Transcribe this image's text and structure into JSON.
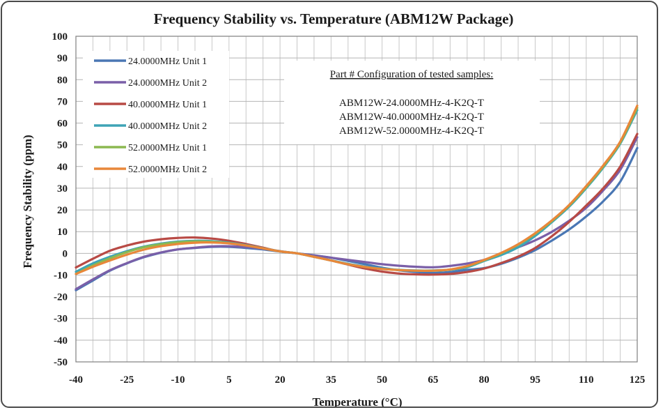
{
  "chart_data": {
    "type": "line",
    "title": "Frequency Stability  vs. Temperature (ABM12W Package)",
    "xlabel": "Temperature (°C)",
    "ylabel": "Frequency Stability  (ppm)",
    "xlim": [
      -40,
      125
    ],
    "ylim": [
      -50,
      100
    ],
    "x_ticks": [
      "-40",
      "-25",
      "-10",
      "5",
      "20",
      "35",
      "50",
      "65",
      "80",
      "95",
      "110",
      "125"
    ],
    "y_ticks": [
      "100",
      "90",
      "80",
      "70",
      "60",
      "50",
      "40",
      "30",
      "20",
      "10",
      "0",
      "-10",
      "-20",
      "-30",
      "-40",
      "-50"
    ],
    "grid": true,
    "legend_position": "top-left",
    "x": [
      -40,
      -35,
      -30,
      -25,
      -20,
      -15,
      -10,
      -5,
      0,
      5,
      10,
      15,
      20,
      25,
      30,
      35,
      40,
      45,
      50,
      55,
      60,
      65,
      70,
      75,
      80,
      85,
      90,
      95,
      100,
      105,
      110,
      115,
      120,
      125
    ],
    "series": [
      {
        "name": "24.0000MHz Unit 1",
        "color": "#4a77b4",
        "values": [
          -17,
          -12.5,
          -8,
          -4.6,
          -1.8,
          0.3,
          1.8,
          2.5,
          3.0,
          3.0,
          2.5,
          1.8,
          0.8,
          0,
          -0.9,
          -2,
          -3.5,
          -5,
          -6.6,
          -7.8,
          -8.6,
          -9,
          -8.6,
          -7.6,
          -6.8,
          -4.8,
          -2,
          1.5,
          6,
          11,
          17,
          24,
          33,
          48.5
        ]
      },
      {
        "name": "24.0000MHz Unit 2",
        "color": "#7a5fa8",
        "values": [
          -16.5,
          -12,
          -7.8,
          -4.5,
          -1.6,
          0.4,
          1.8,
          2.6,
          3.2,
          3.3,
          2.9,
          2.1,
          1.0,
          0,
          -1.0,
          -2.0,
          -3.0,
          -4.0,
          -5.0,
          -5.7,
          -6.2,
          -6.4,
          -5.8,
          -4.7,
          -3.0,
          0,
          2.8,
          6.0,
          10.0,
          15.0,
          21.0,
          29.0,
          38.5,
          53.5
        ]
      },
      {
        "name": "40.0000MHz Unit 1",
        "color": "#b84a45",
        "values": [
          -6.5,
          -2.5,
          1.2,
          3.6,
          5.4,
          6.5,
          7.1,
          7.3,
          6.8,
          5.8,
          4.3,
          2.6,
          0.9,
          0,
          -1.6,
          -3.3,
          -5.2,
          -7,
          -8.4,
          -9.3,
          -9.7,
          -9.8,
          -9.5,
          -8.6,
          -7,
          -4.5,
          -1.5,
          2.5,
          8,
          14.5,
          22,
          30,
          40,
          55
        ]
      },
      {
        "name": "40.0000MHz Unit 2",
        "color": "#3ea4b6",
        "values": [
          -8.5,
          -4.6,
          -1.6,
          1,
          3.1,
          4.5,
          5.4,
          5.8,
          5.6,
          4.9,
          3.8,
          2.4,
          0.9,
          0,
          -1.6,
          -3.2,
          -4.8,
          -6.1,
          -7,
          -7.6,
          -7.9,
          -7.9,
          -7.5,
          -6.4,
          -3.5,
          -0.8,
          2.8,
          8,
          14.5,
          21.5,
          30,
          39.5,
          50.5,
          66
        ]
      },
      {
        "name": "52.0000MHz Unit 1",
        "color": "#8cb850",
        "values": [
          -9.5,
          -5.6,
          -2.3,
          0.6,
          2.8,
          4.2,
          5.1,
          5.5,
          5.3,
          4.7,
          3.6,
          2.3,
          0.9,
          0,
          -1.6,
          -3.3,
          -5.0,
          -6.3,
          -7.2,
          -7.7,
          -8.0,
          -8.0,
          -7.5,
          -6.0,
          -3.2,
          0,
          4.0,
          9.0,
          15.0,
          22.0,
          30.5,
          40.0,
          51.0,
          67.0
        ]
      },
      {
        "name": "52.0000MHz Unit 2",
        "color": "#e8873a",
        "values": [
          -9.5,
          -6.2,
          -3.3,
          -0.6,
          1.7,
          3.3,
          4.3,
          4.9,
          5.0,
          4.6,
          3.6,
          2.3,
          0.9,
          0,
          -1.6,
          -3.3,
          -5.0,
          -6.3,
          -7.2,
          -7.7,
          -8.0,
          -8.0,
          -7.4,
          -5.8,
          -3.0,
          0.2,
          4.2,
          9.3,
          15.3,
          22.3,
          31.0,
          40.5,
          51.5,
          68.0
        ]
      }
    ],
    "annotation": {
      "heading": "Part # Configuration of tested samples:",
      "lines": [
        "ABM12W-24.0000MHz-4-K2Q-T",
        "ABM12W-40.0000MHz-4-K2Q-T",
        "ABM12W-52.0000MHz-4-K2Q-T"
      ]
    }
  }
}
